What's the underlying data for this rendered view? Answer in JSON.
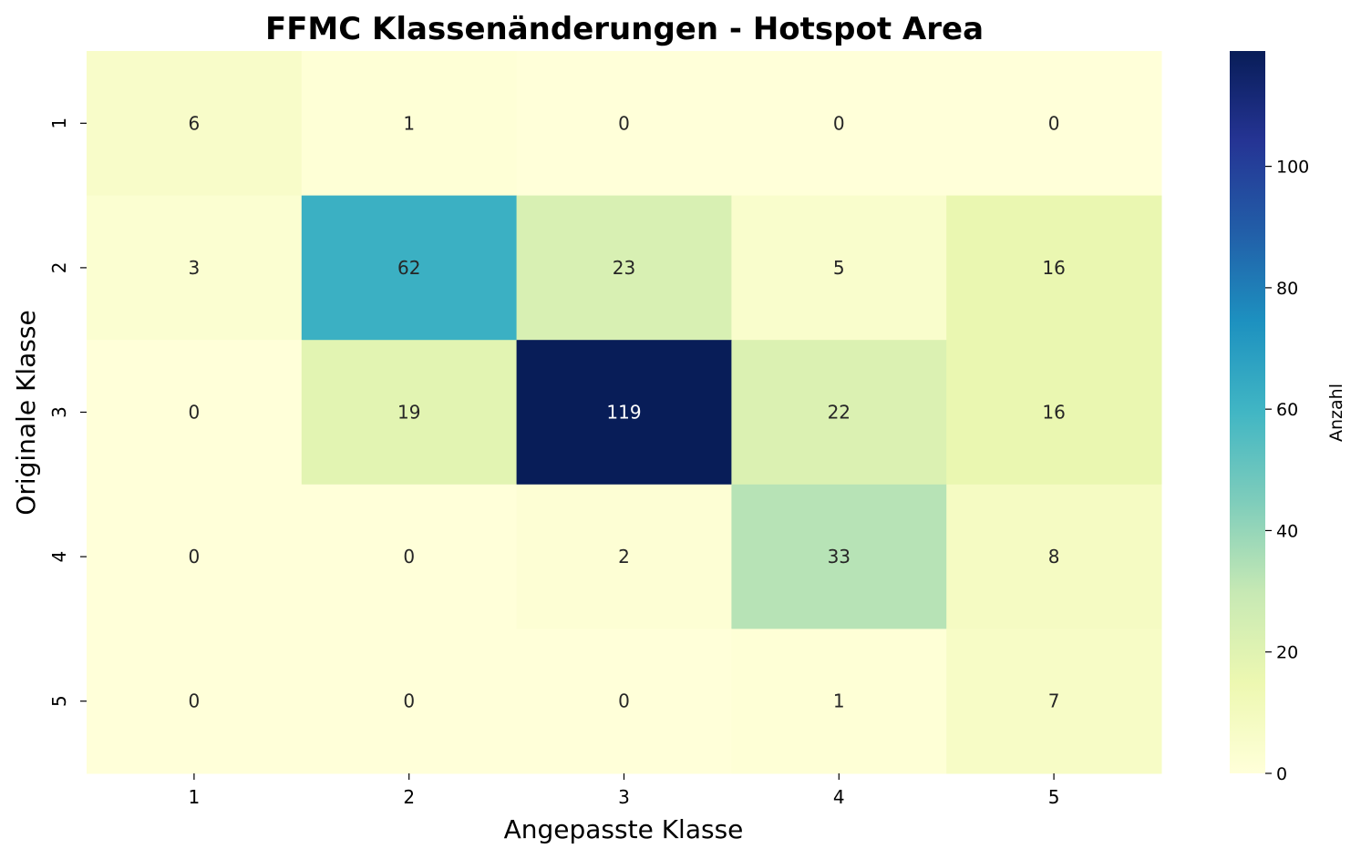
{
  "chart_data": {
    "type": "heatmap",
    "title": "FFMC Klassenänderungen - Hotspot Area",
    "xlabel": "Angepasste Klasse",
    "ylabel": "Originale Klasse",
    "x_categories": [
      "1",
      "2",
      "3",
      "4",
      "5"
    ],
    "y_categories": [
      "1",
      "2",
      "3",
      "4",
      "5"
    ],
    "values": [
      [
        6,
        1,
        0,
        0,
        0
      ],
      [
        3,
        62,
        23,
        5,
        16
      ],
      [
        0,
        19,
        119,
        22,
        16
      ],
      [
        0,
        0,
        2,
        33,
        8
      ],
      [
        0,
        0,
        0,
        1,
        7
      ]
    ],
    "colorbar": {
      "label": "Anzahl",
      "range": [
        0,
        119
      ],
      "ticks": [
        0,
        20,
        40,
        60,
        80,
        100
      ],
      "colormap": "YlGnBu"
    },
    "grid": false
  }
}
